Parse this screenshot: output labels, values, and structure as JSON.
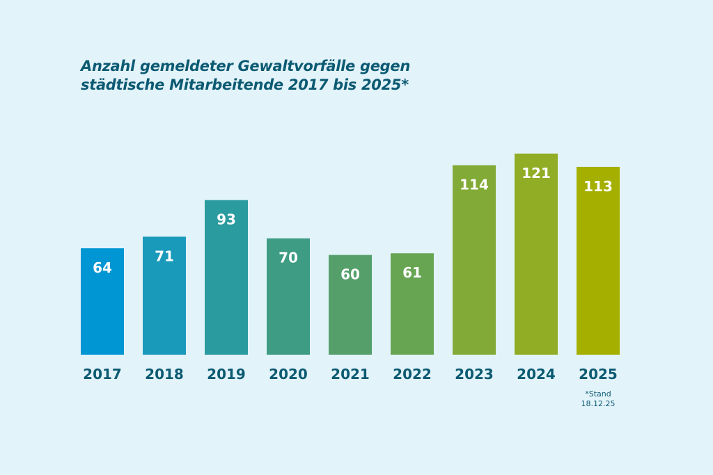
{
  "chart_data": {
    "type": "bar",
    "title_line1": "Anzahl gemeldeter Gewaltvorfälle gegen",
    "title_line2": "städtische Mitarbeitende 2017 bis 2025*",
    "categories": [
      "2017",
      "2018",
      "2019",
      "2020",
      "2021",
      "2022",
      "2023",
      "2024",
      "2025"
    ],
    "values": [
      64,
      71,
      93,
      70,
      60,
      61,
      114,
      121,
      113
    ],
    "colors": [
      "#0095d3",
      "#1a9abb",
      "#2a9b9e",
      "#3e9c84",
      "#559f6b",
      "#68a553",
      "#82aa36",
      "#90ad25",
      "#a4af00"
    ],
    "data_labels": true,
    "footnote_line1": "*Stand",
    "footnote_line2": "18.12.25",
    "text_color": "#0b5a72",
    "background": "#e3f3fa"
  }
}
